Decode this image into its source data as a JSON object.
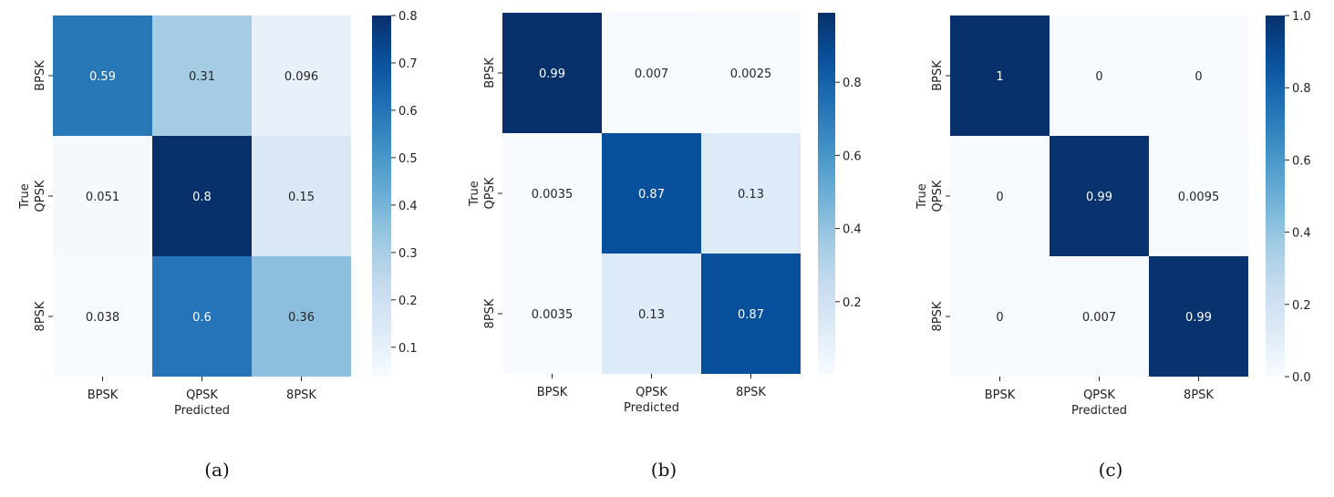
{
  "chart_data": [
    {
      "type": "heatmap",
      "caption": "(a)",
      "rows": [
        "BPSK",
        "QPSK",
        "8PSK"
      ],
      "cols": [
        "BPSK",
        "QPSK",
        "8PSK"
      ],
      "values": [
        [
          0.59,
          0.31,
          0.096
        ],
        [
          0.051,
          0.8,
          0.15
        ],
        [
          0.038,
          0.6,
          0.36
        ]
      ],
      "labels": [
        [
          "0.59",
          "0.31",
          "0.096"
        ],
        [
          "0.051",
          "0.8",
          "0.15"
        ],
        [
          "0.038",
          "0.6",
          "0.36"
        ]
      ],
      "xlabel": "Predicted",
      "ylabel": "True",
      "colormap": "Blues",
      "vmin": 0.038,
      "vmax": 0.8,
      "colorbar_ticks": [
        0.1,
        0.2,
        0.3,
        0.4,
        0.5,
        0.6,
        0.7,
        0.8
      ],
      "colorbar_tick_labels": [
        "0.1",
        "0.2",
        "0.3",
        "0.4",
        "0.5",
        "0.6",
        "0.7",
        "0.8"
      ]
    },
    {
      "type": "heatmap",
      "caption": "(b)",
      "rows": [
        "BPSK",
        "QPSK",
        "8PSK"
      ],
      "cols": [
        "BPSK",
        "QPSK",
        "8PSK"
      ],
      "values": [
        [
          0.99,
          0.007,
          0.0025
        ],
        [
          0.0035,
          0.87,
          0.13
        ],
        [
          0.0035,
          0.13,
          0.87
        ]
      ],
      "labels": [
        [
          "0.99",
          "0.007",
          "0.0025"
        ],
        [
          "0.0035",
          "0.87",
          "0.13"
        ],
        [
          "0.0035",
          "0.13",
          "0.87"
        ]
      ],
      "xlabel": "Predicted",
      "ylabel": "True",
      "colormap": "Blues",
      "vmin": 0.0025,
      "vmax": 0.99,
      "colorbar_ticks": [
        0.2,
        0.4,
        0.6,
        0.8
      ],
      "colorbar_tick_labels": [
        "0.2",
        "0.4",
        "0.6",
        "0.8"
      ]
    },
    {
      "type": "heatmap",
      "caption": "(c)",
      "rows": [
        "BPSK",
        "QPSK",
        "8PSK"
      ],
      "cols": [
        "BPSK",
        "QPSK",
        "8PSK"
      ],
      "values": [
        [
          1,
          0,
          0
        ],
        [
          0,
          0.99,
          0.0095
        ],
        [
          0,
          0.007,
          0.99
        ]
      ],
      "labels": [
        [
          "1",
          "0",
          "0"
        ],
        [
          "0",
          "0.99",
          "0.0095"
        ],
        [
          "0",
          "0.007",
          "0.99"
        ]
      ],
      "xlabel": "Predicted",
      "ylabel": "True",
      "colormap": "Blues",
      "vmin": 0,
      "vmax": 1,
      "colorbar_ticks": [
        0,
        0.2,
        0.4,
        0.6,
        0.8,
        1.0
      ],
      "colorbar_tick_labels": [
        "0.0",
        "0.2",
        "0.4",
        "0.6",
        "0.8",
        "1.0"
      ]
    }
  ]
}
